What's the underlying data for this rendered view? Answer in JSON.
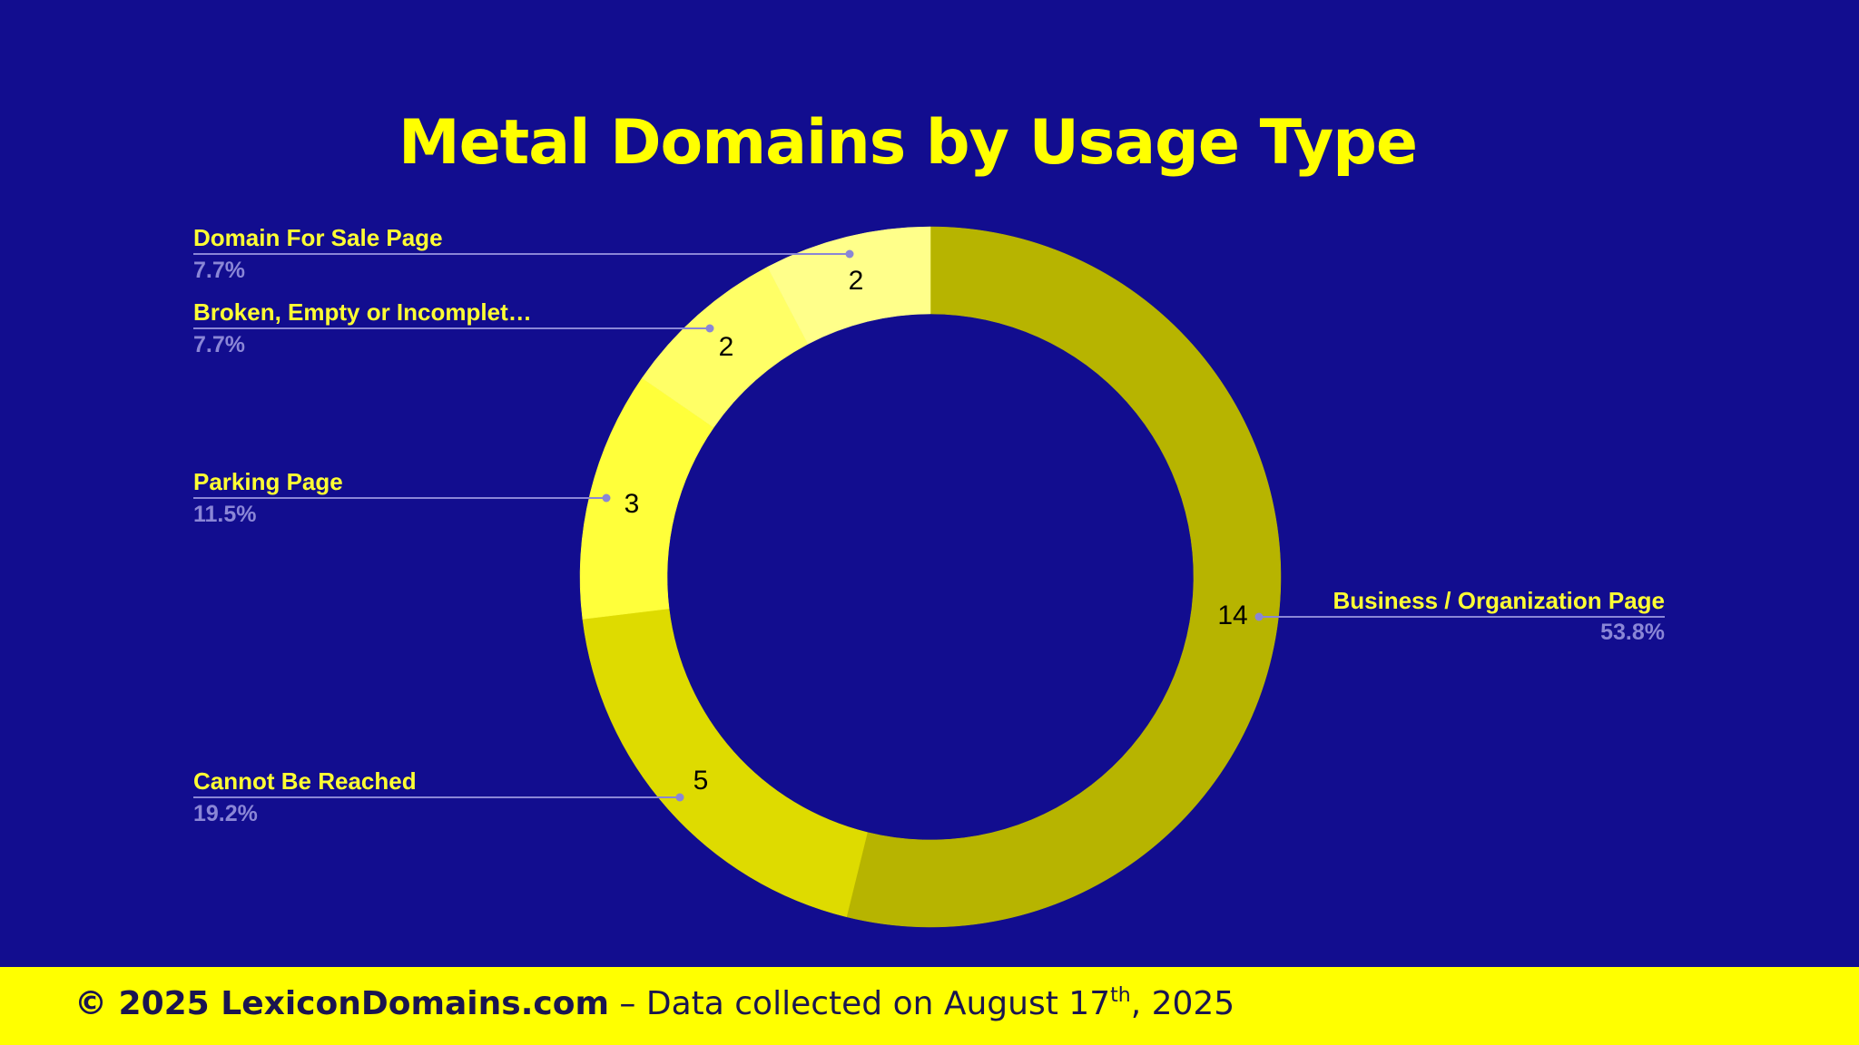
{
  "chart_data": {
    "type": "pie",
    "title": "Metal Domains by Usage Type",
    "donut": true,
    "slices": [
      {
        "label": "Business / Organization Page",
        "value": 14,
        "value_label": "14",
        "percent": "53.8%",
        "color": "#b7b400",
        "legend_side": "right"
      },
      {
        "label": "Cannot Be Reached",
        "value": 5,
        "value_label": "5",
        "percent": "19.2%",
        "color": "#dedb00",
        "legend_side": "left"
      },
      {
        "label": "Parking Page",
        "value": 3,
        "value_label": "3",
        "percent": "11.5%",
        "color": "#ffff3a",
        "legend_side": "left"
      },
      {
        "label": "Broken, Empty or Incomplet…",
        "value": 2,
        "value_label": "2",
        "percent": "7.7%",
        "color": "#ffff66",
        "legend_side": "left"
      },
      {
        "label": "Domain For Sale Page",
        "value": 2,
        "value_label": "2",
        "percent": "7.7%",
        "color": "#ffff8a",
        "legend_side": "left"
      }
    ],
    "background": "#120d8f",
    "leader_line_color": "#8a86d6"
  },
  "footer": {
    "copyright": "© 2025 LexiconDomains.com",
    "text_prefix": " – Data collected on August 17",
    "sup": "th",
    "text_suffix": ", 2025"
  }
}
